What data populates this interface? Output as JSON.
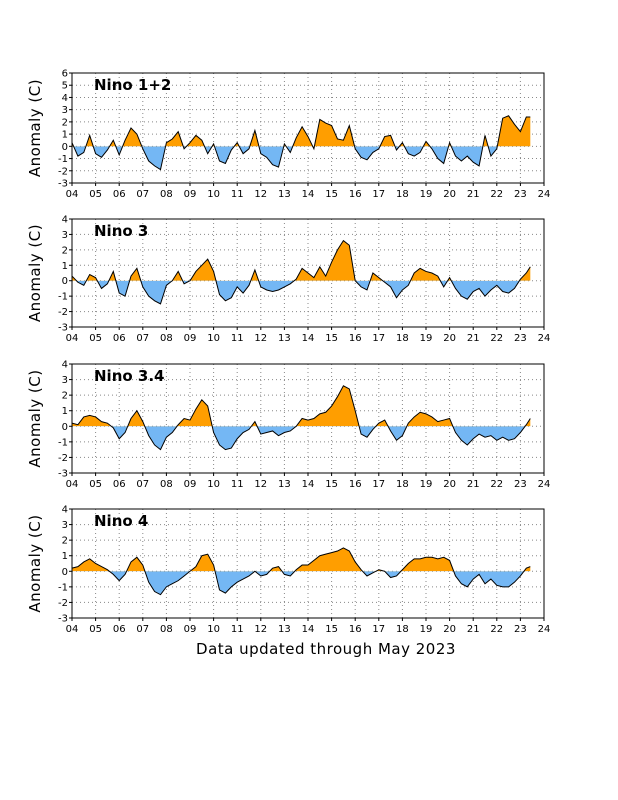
{
  "footer": "Data updated through May 2023",
  "colors": {
    "positive": "#FF9E00",
    "negative": "#74B7F4",
    "line": "#000000",
    "grid": "#888888"
  },
  "chart_data": [
    {
      "type": "area",
      "title": "Nino 1+2",
      "ylabel": "Anomaly (C)",
      "ylim": [
        -3,
        6
      ],
      "xlim": [
        2004,
        2024
      ],
      "yticks": [
        "-3",
        "-2",
        "-1",
        "0",
        "1",
        "2",
        "3",
        "4",
        "5",
        "6"
      ],
      "xticks": [
        "04",
        "05",
        "06",
        "07",
        "08",
        "09",
        "10",
        "11",
        "12",
        "13",
        "14",
        "15",
        "16",
        "17",
        "18",
        "19",
        "20",
        "21",
        "22",
        "23",
        "24"
      ],
      "grid": true,
      "x": [
        2004.0,
        2004.25,
        2004.5,
        2004.75,
        2005.0,
        2005.25,
        2005.5,
        2005.75,
        2006.0,
        2006.25,
        2006.5,
        2006.75,
        2007.0,
        2007.25,
        2007.5,
        2007.75,
        2008.0,
        2008.25,
        2008.5,
        2008.75,
        2009.0,
        2009.25,
        2009.5,
        2009.75,
        2010.0,
        2010.25,
        2010.5,
        2010.75,
        2011.0,
        2011.25,
        2011.5,
        2011.75,
        2012.0,
        2012.25,
        2012.5,
        2012.75,
        2013.0,
        2013.25,
        2013.5,
        2013.75,
        2014.0,
        2014.25,
        2014.5,
        2014.75,
        2015.0,
        2015.25,
        2015.5,
        2015.75,
        2016.0,
        2016.25,
        2016.5,
        2016.75,
        2017.0,
        2017.25,
        2017.5,
        2017.75,
        2018.0,
        2018.25,
        2018.5,
        2018.75,
        2019.0,
        2019.25,
        2019.5,
        2019.75,
        2020.0,
        2020.25,
        2020.5,
        2020.75,
        2021.0,
        2021.25,
        2021.5,
        2021.75,
        2022.0,
        2022.25,
        2022.5,
        2022.75,
        2023.0,
        2023.25,
        2023.42
      ],
      "values": [
        0.3,
        -0.8,
        -0.5,
        0.9,
        -0.6,
        -0.9,
        -0.3,
        0.5,
        -0.7,
        0.5,
        1.5,
        1.0,
        -0.2,
        -1.2,
        -1.6,
        -1.9,
        0.3,
        0.6,
        1.2,
        -0.2,
        0.3,
        0.9,
        0.5,
        -0.6,
        0.2,
        -1.2,
        -1.4,
        -0.3,
        0.3,
        -0.6,
        -0.2,
        1.3,
        -0.6,
        -0.9,
        -1.5,
        -1.7,
        0.2,
        -0.5,
        0.7,
        1.6,
        0.8,
        -0.2,
        2.2,
        1.9,
        1.7,
        0.6,
        0.5,
        1.7,
        -0.2,
        -0.9,
        -1.1,
        -0.5,
        -0.2,
        0.8,
        0.9,
        -0.3,
        0.3,
        -0.6,
        -0.8,
        -0.5,
        0.4,
        -0.2,
        -1.0,
        -1.4,
        0.3,
        -0.8,
        -1.2,
        -0.8,
        -1.3,
        -1.6,
        0.9,
        -0.8,
        -0.2,
        2.3,
        2.5,
        1.8,
        1.2,
        2.4,
        2.4
      ]
    },
    {
      "type": "area",
      "title": "Nino 3",
      "ylabel": "Anomaly (C)",
      "ylim": [
        -3,
        4
      ],
      "xlim": [
        2004,
        2024
      ],
      "yticks": [
        "-3",
        "-2",
        "-1",
        "0",
        "1",
        "2",
        "3",
        "4"
      ],
      "xticks": [
        "04",
        "05",
        "06",
        "07",
        "08",
        "09",
        "10",
        "11",
        "12",
        "13",
        "14",
        "15",
        "16",
        "17",
        "18",
        "19",
        "20",
        "21",
        "22",
        "23",
        "24"
      ],
      "grid": true,
      "x": [
        2004.0,
        2004.25,
        2004.5,
        2004.75,
        2005.0,
        2005.25,
        2005.5,
        2005.75,
        2006.0,
        2006.25,
        2006.5,
        2006.75,
        2007.0,
        2007.25,
        2007.5,
        2007.75,
        2008.0,
        2008.25,
        2008.5,
        2008.75,
        2009.0,
        2009.25,
        2009.5,
        2009.75,
        2010.0,
        2010.25,
        2010.5,
        2010.75,
        2011.0,
        2011.25,
        2011.5,
        2011.75,
        2012.0,
        2012.25,
        2012.5,
        2012.75,
        2013.0,
        2013.25,
        2013.5,
        2013.75,
        2014.0,
        2014.25,
        2014.5,
        2014.75,
        2015.0,
        2015.25,
        2015.5,
        2015.75,
        2016.0,
        2016.25,
        2016.5,
        2016.75,
        2017.0,
        2017.25,
        2017.5,
        2017.75,
        2018.0,
        2018.25,
        2018.5,
        2018.75,
        2019.0,
        2019.25,
        2019.5,
        2019.75,
        2020.0,
        2020.25,
        2020.5,
        2020.75,
        2021.0,
        2021.25,
        2021.5,
        2021.75,
        2022.0,
        2022.25,
        2022.5,
        2022.75,
        2023.0,
        2023.25,
        2023.42
      ],
      "values": [
        0.3,
        -0.1,
        -0.3,
        0.4,
        0.2,
        -0.5,
        -0.2,
        0.6,
        -0.8,
        -1.0,
        0.3,
        0.8,
        -0.4,
        -1.0,
        -1.3,
        -1.5,
        -0.3,
        0.0,
        0.6,
        -0.2,
        0.0,
        0.6,
        1.0,
        1.4,
        0.6,
        -0.9,
        -1.3,
        -1.1,
        -0.4,
        -0.8,
        -0.3,
        0.7,
        -0.4,
        -0.6,
        -0.7,
        -0.6,
        -0.4,
        -0.2,
        0.1,
        0.8,
        0.5,
        0.2,
        0.9,
        0.3,
        1.2,
        2.0,
        2.6,
        2.3,
        0.0,
        -0.4,
        -0.6,
        0.5,
        0.2,
        -0.1,
        -0.4,
        -1.1,
        -0.6,
        -0.3,
        0.5,
        0.8,
        0.6,
        0.5,
        0.3,
        -0.4,
        0.2,
        -0.5,
        -1.0,
        -1.2,
        -0.7,
        -0.5,
        -1.0,
        -0.6,
        -0.3,
        -0.7,
        -0.8,
        -0.5,
        0.1,
        0.5,
        0.9
      ]
    },
    {
      "type": "area",
      "title": "Nino 3.4",
      "ylabel": "Anomaly (C)",
      "ylim": [
        -3,
        4
      ],
      "xlim": [
        2004,
        2024
      ],
      "yticks": [
        "-3",
        "-2",
        "-1",
        "0",
        "1",
        "2",
        "3",
        "4"
      ],
      "xticks": [
        "04",
        "05",
        "06",
        "07",
        "08",
        "09",
        "10",
        "11",
        "12",
        "13",
        "14",
        "15",
        "16",
        "17",
        "18",
        "19",
        "20",
        "21",
        "22",
        "23",
        "24"
      ],
      "grid": true,
      "x": [
        2004.0,
        2004.25,
        2004.5,
        2004.75,
        2005.0,
        2005.25,
        2005.5,
        2005.75,
        2006.0,
        2006.25,
        2006.5,
        2006.75,
        2007.0,
        2007.25,
        2007.5,
        2007.75,
        2008.0,
        2008.25,
        2008.5,
        2008.75,
        2009.0,
        2009.25,
        2009.5,
        2009.75,
        2010.0,
        2010.25,
        2010.5,
        2010.75,
        2011.0,
        2011.25,
        2011.5,
        2011.75,
        2012.0,
        2012.25,
        2012.5,
        2012.75,
        2013.0,
        2013.25,
        2013.5,
        2013.75,
        2014.0,
        2014.25,
        2014.5,
        2014.75,
        2015.0,
        2015.25,
        2015.5,
        2015.75,
        2016.0,
        2016.25,
        2016.5,
        2016.75,
        2017.0,
        2017.25,
        2017.5,
        2017.75,
        2018.0,
        2018.25,
        2018.5,
        2018.75,
        2019.0,
        2019.25,
        2019.5,
        2019.75,
        2020.0,
        2020.25,
        2020.5,
        2020.75,
        2021.0,
        2021.25,
        2021.5,
        2021.75,
        2022.0,
        2022.25,
        2022.5,
        2022.75,
        2023.0,
        2023.25,
        2023.42
      ],
      "values": [
        0.2,
        0.1,
        0.6,
        0.7,
        0.6,
        0.3,
        0.2,
        -0.1,
        -0.8,
        -0.4,
        0.5,
        1.0,
        0.3,
        -0.6,
        -1.2,
        -1.5,
        -0.7,
        -0.4,
        0.1,
        0.5,
        0.4,
        1.1,
        1.7,
        1.3,
        -0.4,
        -1.2,
        -1.5,
        -1.4,
        -0.8,
        -0.4,
        -0.2,
        0.3,
        -0.5,
        -0.4,
        -0.3,
        -0.6,
        -0.4,
        -0.3,
        0.0,
        0.5,
        0.4,
        0.5,
        0.8,
        0.9,
        1.3,
        1.9,
        2.6,
        2.4,
        1.0,
        -0.5,
        -0.7,
        -0.2,
        0.2,
        0.4,
        -0.3,
        -0.9,
        -0.6,
        0.2,
        0.6,
        0.9,
        0.8,
        0.6,
        0.3,
        0.4,
        0.5,
        -0.4,
        -0.9,
        -1.2,
        -0.8,
        -0.5,
        -0.7,
        -0.6,
        -0.9,
        -0.7,
        -0.9,
        -0.8,
        -0.4,
        0.1,
        0.5
      ]
    },
    {
      "type": "area",
      "title": "Nino 4",
      "ylabel": "Anomaly (C)",
      "ylim": [
        -3,
        4
      ],
      "xlim": [
        2004,
        2024
      ],
      "yticks": [
        "-3",
        "-2",
        "-1",
        "0",
        "1",
        "2",
        "3",
        "4"
      ],
      "xticks": [
        "04",
        "05",
        "06",
        "07",
        "08",
        "09",
        "10",
        "11",
        "12",
        "13",
        "14",
        "15",
        "16",
        "17",
        "18",
        "19",
        "20",
        "21",
        "22",
        "23",
        "24"
      ],
      "grid": true,
      "x": [
        2004.0,
        2004.25,
        2004.5,
        2004.75,
        2005.0,
        2005.25,
        2005.5,
        2005.75,
        2006.0,
        2006.25,
        2006.5,
        2006.75,
        2007.0,
        2007.25,
        2007.5,
        2007.75,
        2008.0,
        2008.25,
        2008.5,
        2008.75,
        2009.0,
        2009.25,
        2009.5,
        2009.75,
        2010.0,
        2010.25,
        2010.5,
        2010.75,
        2011.0,
        2011.25,
        2011.5,
        2011.75,
        2012.0,
        2012.25,
        2012.5,
        2012.75,
        2013.0,
        2013.25,
        2013.5,
        2013.75,
        2014.0,
        2014.25,
        2014.5,
        2014.75,
        2015.0,
        2015.25,
        2015.5,
        2015.75,
        2016.0,
        2016.25,
        2016.5,
        2016.75,
        2017.0,
        2017.25,
        2017.5,
        2017.75,
        2018.0,
        2018.25,
        2018.5,
        2018.75,
        2019.0,
        2019.25,
        2019.5,
        2019.75,
        2020.0,
        2020.25,
        2020.5,
        2020.75,
        2021.0,
        2021.25,
        2021.5,
        2021.75,
        2022.0,
        2022.25,
        2022.5,
        2022.75,
        2023.0,
        2023.25,
        2023.42
      ],
      "values": [
        0.2,
        0.3,
        0.6,
        0.8,
        0.5,
        0.3,
        0.1,
        -0.2,
        -0.6,
        -0.2,
        0.6,
        0.9,
        0.4,
        -0.7,
        -1.3,
        -1.5,
        -1.0,
        -0.8,
        -0.6,
        -0.3,
        0.0,
        0.3,
        1.0,
        1.1,
        0.4,
        -1.2,
        -1.4,
        -1.0,
        -0.7,
        -0.5,
        -0.3,
        0.0,
        -0.3,
        -0.2,
        0.2,
        0.3,
        -0.2,
        -0.3,
        0.1,
        0.4,
        0.4,
        0.7,
        1.0,
        1.1,
        1.2,
        1.3,
        1.5,
        1.3,
        0.6,
        0.1,
        -0.3,
        -0.1,
        0.1,
        0.0,
        -0.4,
        -0.3,
        0.1,
        0.5,
        0.8,
        0.8,
        0.9,
        0.9,
        0.8,
        0.9,
        0.7,
        -0.3,
        -0.8,
        -1.0,
        -0.5,
        -0.2,
        -0.8,
        -0.5,
        -0.9,
        -1.0,
        -1.0,
        -0.7,
        -0.3,
        0.2,
        0.3
      ]
    }
  ]
}
